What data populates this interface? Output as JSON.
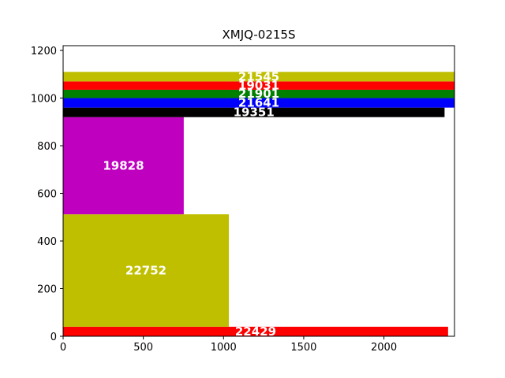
{
  "chart_data": {
    "type": "bar",
    "title": "XMJQ-0215S",
    "xlabel": "",
    "ylabel": "",
    "xlim": [
      0,
      2440
    ],
    "ylim": [
      0,
      1220
    ],
    "xticks": [
      0,
      500,
      1000,
      1500,
      2000
    ],
    "yticks": [
      0,
      200,
      400,
      600,
      800,
      1000,
      1200
    ],
    "grid": false,
    "bars": [
      {
        "label": "22429",
        "x0": 0,
        "x1": 2400,
        "y0": 0,
        "y1": 40,
        "color": "#ff0000"
      },
      {
        "label": "22752",
        "x0": 0,
        "x1": 1033,
        "y0": 40,
        "y1": 512,
        "color": "#bfbf00"
      },
      {
        "label": "19828",
        "x0": 0,
        "x1": 752,
        "y0": 512,
        "y1": 920,
        "color": "#bf00bf"
      },
      {
        "label": "19351",
        "x0": 0,
        "x1": 2378,
        "y0": 920,
        "y1": 960,
        "color": "#000000"
      },
      {
        "label": "21641",
        "x0": 0,
        "x1": 2440,
        "y0": 960,
        "y1": 1000,
        "color": "#0000ff"
      },
      {
        "label": "21901",
        "x0": 0,
        "x1": 2440,
        "y0": 1000,
        "y1": 1035,
        "color": "#008000"
      },
      {
        "label": "19031",
        "x0": 0,
        "x1": 2440,
        "y0": 1035,
        "y1": 1070,
        "color": "#ff0000"
      },
      {
        "label": "21545",
        "x0": 0,
        "x1": 2440,
        "y0": 1070,
        "y1": 1110,
        "color": "#bfbf00"
      }
    ]
  }
}
